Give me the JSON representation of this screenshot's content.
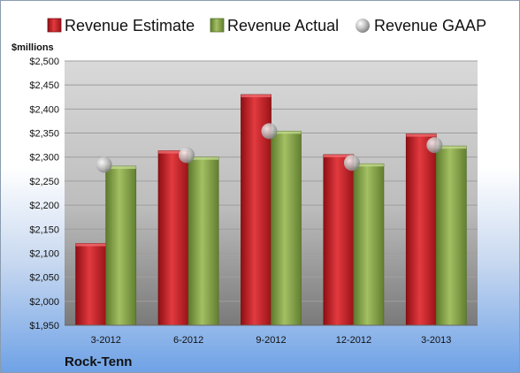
{
  "chart_data": {
    "type": "bar",
    "unit_label": "$millions",
    "company": "Rock-Tenn",
    "categories": [
      "3-2012",
      "6-2012",
      "9-2012",
      "12-2012",
      "3-2013"
    ],
    "series": [
      {
        "name": "Revenue Estimate",
        "kind": "bar",
        "color": "#d42127",
        "values": [
          2120,
          2313,
          2430,
          2305,
          2348
        ]
      },
      {
        "name": "Revenue Actual",
        "kind": "bar",
        "color": "#8aa94a",
        "values": [
          2281,
          2300,
          2354,
          2286,
          2323
        ]
      },
      {
        "name": "Revenue GAAP",
        "kind": "marker",
        "color": "#b8b8b8",
        "values": [
          2284,
          2304,
          2354,
          2288,
          2325
        ]
      }
    ],
    "ylim": [
      1950,
      2500
    ],
    "ytick_step": 50,
    "ytick_labels": [
      "$1,950",
      "$2,000",
      "$2,050",
      "$2,100",
      "$2,150",
      "$2,200",
      "$2,250",
      "$2,300",
      "$2,350",
      "$2,400",
      "$2,450",
      "$2,500"
    ],
    "grid": true,
    "legend_position": "top"
  }
}
